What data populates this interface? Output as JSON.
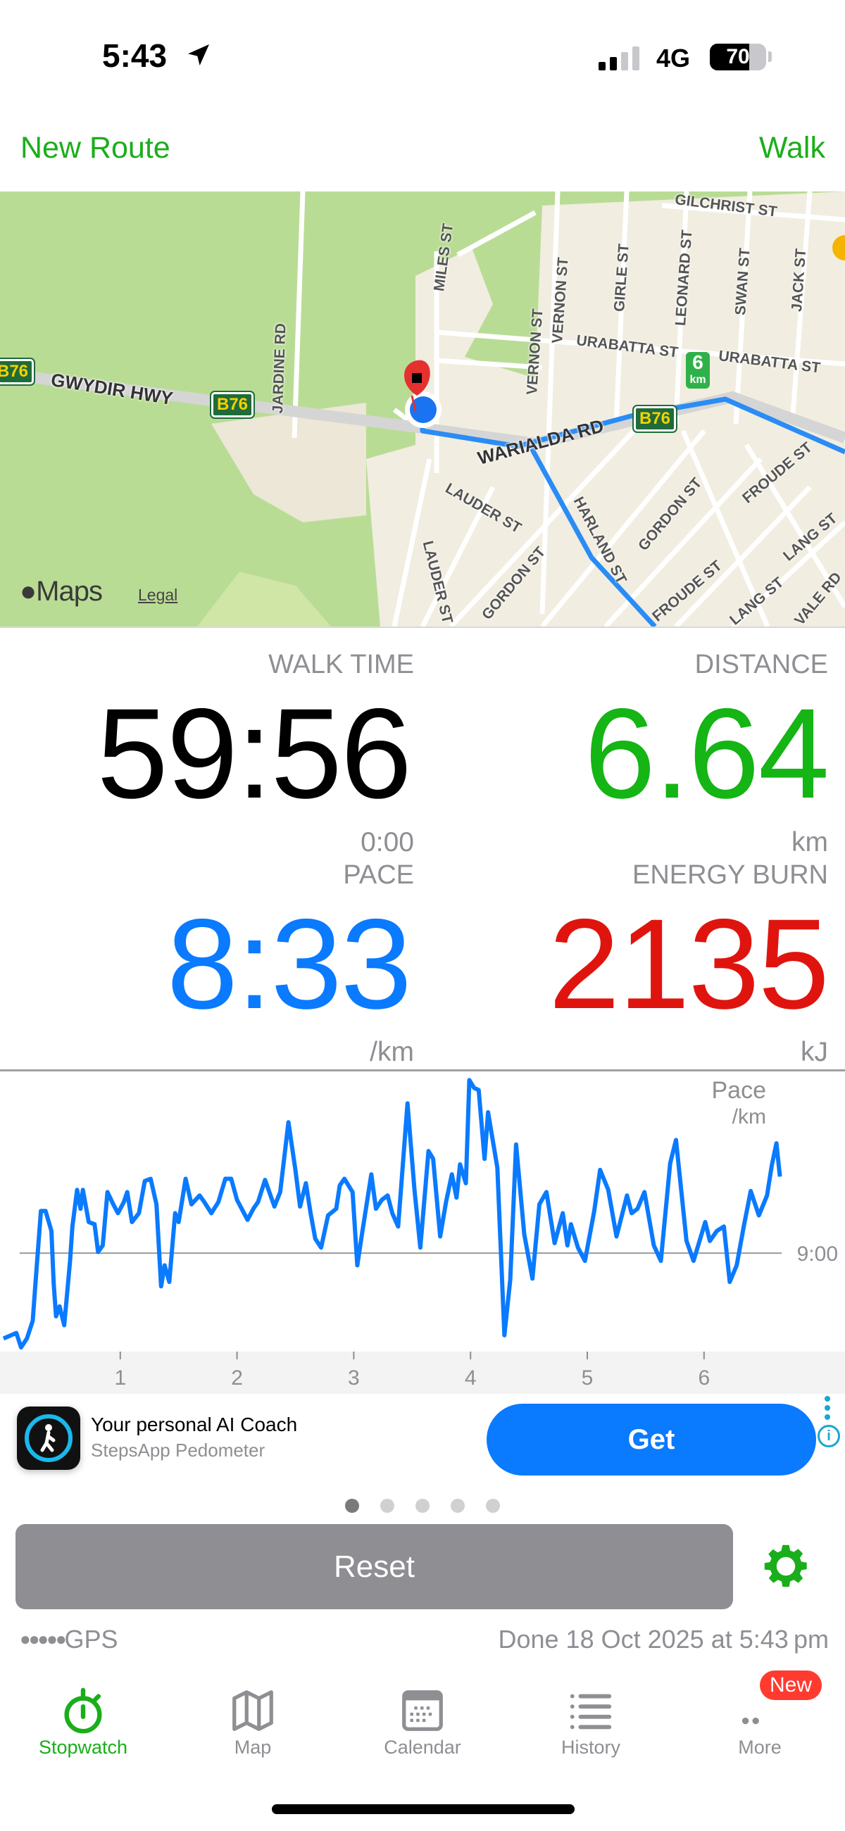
{
  "status_bar": {
    "time": "5:43",
    "network": "4G",
    "battery": "70",
    "location_icon": "location-arrow-icon"
  },
  "header": {
    "left_button": "New Route",
    "right_button": "Walk"
  },
  "map": {
    "attribution": "Maps",
    "legal": "Legal",
    "km_marker": {
      "value": "6",
      "unit": "km"
    },
    "route_shield": "B76",
    "streets": [
      "GILCHRIST ST",
      "VERNON ST",
      "GIRLE ST",
      "LEONARD ST",
      "SWAN ST",
      "JACK ST",
      "MILES ST",
      "URABATTA ST",
      "URABATTA ST",
      "JARDINE RD",
      "GWYDIR HWY",
      "WARIALDA RD",
      "VERNON ST",
      "LAUDER ST",
      "LAUDER ST",
      "GORDON ST",
      "FROUDE ST",
      "FROUDE ST",
      "LANG ST",
      "LANG ST",
      "HARLAND ST",
      "GORDON ST",
      "VALE RD"
    ]
  },
  "stats": {
    "walk_time": {
      "label": "WALK TIME",
      "value": "59:56",
      "sub": "0:00"
    },
    "distance": {
      "label": "DISTANCE",
      "value": "6.64",
      "unit": "km"
    },
    "pace": {
      "label": "PACE",
      "value": "8:33",
      "unit": "/km"
    },
    "energy": {
      "label": "ENERGY BURN",
      "value": "2135",
      "unit": "kJ"
    }
  },
  "colors": {
    "accent_green": "#1aae1a",
    "distance": "#14b514",
    "pace": "#0a7aff",
    "energy": "#e0140e",
    "muted": "#8e8e93"
  },
  "chart_data": {
    "type": "line",
    "title": "Pace",
    "ylabel": "/km",
    "xlabel": "",
    "x_ticks": [
      "1",
      "2",
      "3",
      "4",
      "5",
      "6"
    ],
    "y_reference": {
      "value": 9.0,
      "label": "9:00"
    },
    "xlim": [
      0,
      7.2
    ],
    "ylim": [
      7.4,
      9.85
    ],
    "y_inverted": true,
    "grid": false,
    "series": [
      {
        "color": "#0a7aff",
        "x": [
          0.0,
          0.11,
          0.15,
          0.2,
          0.25,
          0.27,
          0.32,
          0.36,
          0.41,
          0.43,
          0.45,
          0.48,
          0.52,
          0.57,
          0.59,
          0.63,
          0.66,
          0.68,
          0.73,
          0.78,
          0.81,
          0.85,
          0.89,
          0.94,
          0.98,
          1.03,
          1.06,
          1.1,
          1.16,
          1.21,
          1.26,
          1.31,
          1.35,
          1.38,
          1.42,
          1.47,
          1.5,
          1.56,
          1.61,
          1.68,
          1.72,
          1.78,
          1.84,
          1.9,
          1.95,
          2.0,
          2.09,
          2.14,
          2.18,
          2.24,
          2.32,
          2.37,
          2.44,
          2.5,
          2.54,
          2.59,
          2.63,
          2.67,
          2.72,
          2.78,
          2.85,
          2.88,
          2.92,
          2.99,
          3.03,
          3.07,
          3.15,
          3.19,
          3.24,
          3.29,
          3.33,
          3.38,
          3.46,
          3.52,
          3.57,
          3.64,
          3.68,
          3.74,
          3.79,
          3.84,
          3.88,
          3.91,
          3.96,
          3.99,
          4.03,
          4.07,
          4.12,
          4.15,
          4.23,
          4.29,
          4.34,
          4.39,
          4.46,
          4.53,
          4.59,
          4.65,
          4.72,
          4.79,
          4.83,
          4.86,
          4.92,
          4.98,
          5.06,
          5.11,
          5.18,
          5.25,
          5.34,
          5.38,
          5.43,
          5.49,
          5.57,
          5.63,
          5.71,
          5.76,
          5.85,
          5.91,
          6.01,
          6.05,
          6.11,
          6.17,
          6.22,
          6.28,
          6.34,
          6.4,
          6.47,
          6.54,
          6.58,
          6.62,
          6.65
        ],
        "y": [
          9.77,
          9.72,
          9.85,
          9.77,
          9.61,
          9.32,
          8.62,
          8.62,
          8.8,
          9.28,
          9.57,
          9.48,
          9.65,
          9.07,
          8.76,
          8.43,
          8.6,
          8.43,
          8.72,
          8.74,
          8.99,
          8.93,
          8.45,
          8.56,
          8.64,
          8.54,
          8.45,
          8.72,
          8.64,
          8.35,
          8.33,
          8.56,
          9.3,
          9.11,
          9.26,
          8.64,
          8.72,
          8.33,
          8.56,
          8.48,
          8.54,
          8.64,
          8.54,
          8.33,
          8.33,
          8.52,
          8.7,
          8.6,
          8.54,
          8.34,
          8.58,
          8.45,
          7.82,
          8.25,
          8.58,
          8.37,
          8.64,
          8.87,
          8.95,
          8.66,
          8.6,
          8.39,
          8.33,
          8.45,
          9.11,
          8.83,
          8.29,
          8.6,
          8.52,
          8.48,
          8.64,
          8.76,
          7.65,
          8.43,
          8.95,
          8.08,
          8.15,
          8.85,
          8.54,
          8.29,
          8.5,
          8.2,
          8.37,
          7.44,
          7.51,
          7.53,
          8.15,
          7.73,
          8.23,
          9.74,
          9.24,
          8.02,
          8.83,
          9.23,
          8.56,
          8.45,
          8.91,
          8.64,
          8.93,
          8.74,
          8.95,
          9.07,
          8.62,
          8.25,
          8.43,
          8.85,
          8.48,
          8.64,
          8.6,
          8.45,
          8.93,
          9.07,
          8.19,
          7.98,
          8.89,
          9.07,
          8.72,
          8.89,
          8.8,
          8.76,
          9.26,
          9.11,
          8.76,
          8.44,
          8.66,
          8.48,
          8.21,
          8.01,
          8.31
        ]
      }
    ]
  },
  "ad": {
    "title": "Your personal AI Coach",
    "subtitle": "StepsApp Pedometer",
    "button": "Get"
  },
  "pager": {
    "count": 5,
    "active": 0
  },
  "reset_button": "Reset",
  "footer": {
    "gps_label": "GPS",
    "gps_strength": 5,
    "done_text": "Done 18 Oct 2025 at 5:43 pm"
  },
  "tabs": [
    {
      "label": "Stopwatch",
      "icon": "stopwatch-icon",
      "active": true
    },
    {
      "label": "Map",
      "icon": "map-icon"
    },
    {
      "label": "Calendar",
      "icon": "calendar-icon"
    },
    {
      "label": "History",
      "icon": "list-icon"
    },
    {
      "label": "More",
      "icon": "more-icon",
      "badge": "New"
    }
  ]
}
